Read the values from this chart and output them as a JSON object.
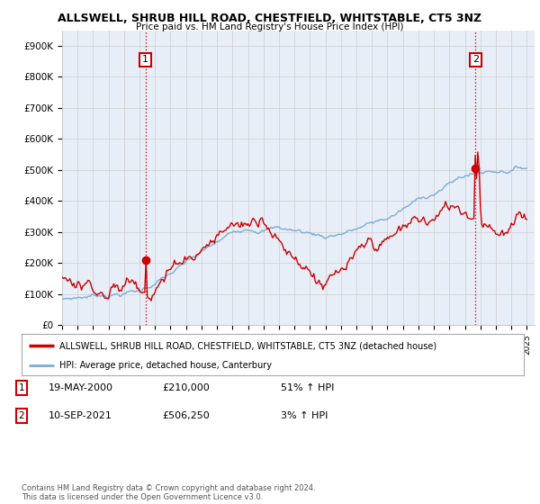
{
  "title": "ALLSWELL, SHRUB HILL ROAD, CHESTFIELD, WHITSTABLE, CT5 3NZ",
  "subtitle": "Price paid vs. HM Land Registry's House Price Index (HPI)",
  "ylabel_ticks": [
    "£0",
    "£100K",
    "£200K",
    "£300K",
    "£400K",
    "£500K",
    "£600K",
    "£700K",
    "£800K",
    "£900K"
  ],
  "ytick_values": [
    0,
    100000,
    200000,
    300000,
    400000,
    500000,
    600000,
    700000,
    800000,
    900000
  ],
  "ylim": [
    0,
    950000
  ],
  "xlim_start": 1995.0,
  "xlim_end": 2025.5,
  "legend_line1": "ALLSWELL, SHRUB HILL ROAD, CHESTFIELD, WHITSTABLE, CT5 3NZ (detached house)",
  "legend_line2": "HPI: Average price, detached house, Canterbury",
  "sale1_date": "19-MAY-2000",
  "sale1_price": "£210,000",
  "sale1_hpi": "51% ↑ HPI",
  "sale2_date": "10-SEP-2021",
  "sale2_price": "£506,250",
  "sale2_hpi": "3% ↑ HPI",
  "footnote": "Contains HM Land Registry data © Crown copyright and database right 2024.\nThis data is licensed under the Open Government Licence v3.0.",
  "red_color": "#cc0000",
  "blue_color": "#7aadd4",
  "background_color": "#ffffff",
  "plot_bg_color": "#e8eef8",
  "grid_color": "#cccccc",
  "sale1_x": 2000.38,
  "sale1_y": 210000,
  "sale2_x": 2021.69,
  "sale2_y": 506250
}
